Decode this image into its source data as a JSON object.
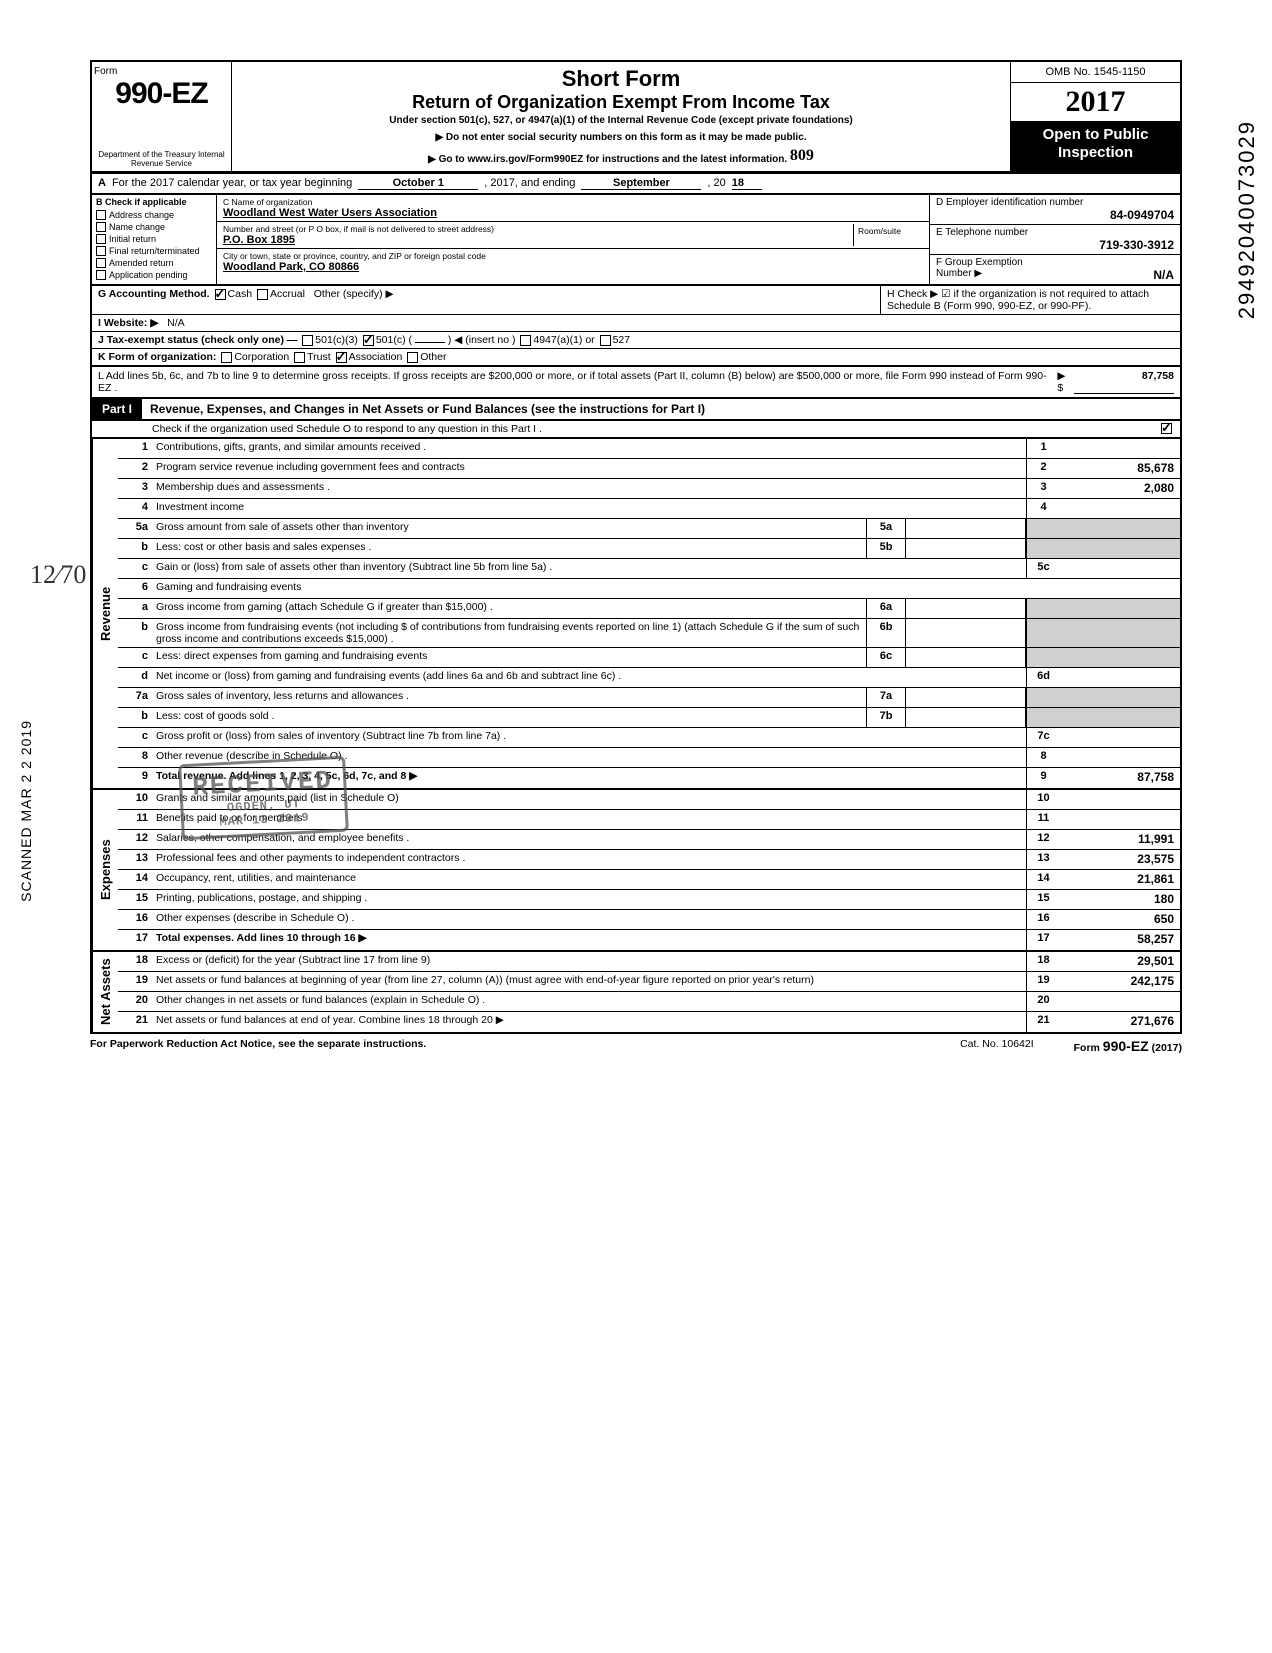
{
  "side": {
    "scan": "SCANNED MAR 2 2 2019",
    "dln": "29492040073029",
    "dln_tail": "9"
  },
  "header": {
    "form_label": "Form",
    "form_number": "990-EZ",
    "dept": "Department of the Treasury\nInternal Revenue Service",
    "title1": "Short Form",
    "title2": "Return of Organization Exempt From Income Tax",
    "subtitle": "Under section 501(c), 527, or 4947(a)(1) of the Internal Revenue Code (except private foundations)",
    "warn": "▶ Do not enter social security numbers on this form as it may be made public.",
    "goto": "▶ Go to www.irs.gov/Form990EZ for instructions and the latest information.",
    "hand809": "809",
    "omb": "OMB No. 1545-1150",
    "year_prefix": "20",
    "year_bold": "17",
    "open1": "Open to Public",
    "open2": "Inspection"
  },
  "rowA": {
    "label": "A",
    "text": "For the 2017 calendar year, or tax year beginning",
    "begin": "October 1",
    "mid": ", 2017, and ending",
    "end": "September",
    "yr_prefix": ", 20",
    "yr": "18"
  },
  "colB": {
    "header": "B  Check if applicable",
    "items": [
      "Address change",
      "Name change",
      "Initial return",
      "Final return/terminated",
      "Amended return",
      "Application pending"
    ]
  },
  "colC": {
    "c_label": "C  Name of organization",
    "c_val": "Woodland West Water Users Association",
    "addr_label": "Number and street (or P O  box, if mail is not delivered to street address)",
    "room_label": "Room/suite",
    "addr_val": "P.O. Box 1895",
    "city_label": "City or town, state or province, country, and ZIP or foreign postal code",
    "city_val": "Woodland Park, CO  80866"
  },
  "colDEF": {
    "d_label": "D  Employer identification number",
    "d_val": "84-0949704",
    "e_label": "E  Telephone number",
    "e_val": "719-330-3912",
    "f_label": "F  Group Exemption",
    "f_label2": "Number ▶",
    "f_val": "N/A"
  },
  "rowsGK": {
    "g_label": "G  Accounting Method.",
    "g_cash": "Cash",
    "g_accrual": "Accrual",
    "g_other": "Other (specify) ▶",
    "h_text": "H  Check ▶ ☑ if the organization is not required to attach Schedule B (Form 990, 990-EZ, or 990-PF).",
    "i_label": "I   Website: ▶",
    "i_val": "N/A",
    "j_label": "J  Tax-exempt status (check only one) —",
    "j_501c3": "501(c)(3)",
    "j_501c": "501(c) (",
    "j_insert": ") ◀ (insert no )",
    "j_4947": "4947(a)(1) or",
    "j_527": "527",
    "k_label": "K  Form of organization:",
    "k_corp": "Corporation",
    "k_trust": "Trust",
    "k_assoc": "Association",
    "k_other": "Other"
  },
  "lineL": {
    "text": "L  Add lines 5b, 6c, and 7b to line 9 to determine gross receipts. If gross receipts are $200,000 or more, or if total assets (Part II, column (B) below) are $500,000 or more, file Form 990 instead of Form 990-EZ .",
    "arrow": "▶  $",
    "amount": "87,758"
  },
  "part1": {
    "tag": "Part I",
    "title": "Revenue, Expenses, and Changes in Net Assets or Fund Balances (see the instructions for Part I)",
    "sched_o": "Check if the organization used Schedule O to respond to any question in this Part I ."
  },
  "sections": {
    "revenue": "Revenue",
    "expenses": "Expenses",
    "netassets": "Net Assets"
  },
  "lines": [
    {
      "n": "1",
      "d": "Contributions, gifts, grants, and similar amounts received .",
      "r": "1",
      "a": ""
    },
    {
      "n": "2",
      "d": "Program service revenue including government fees and contracts",
      "r": "2",
      "a": "85,678"
    },
    {
      "n": "3",
      "d": "Membership dues and assessments .",
      "r": "3",
      "a": "2,080"
    },
    {
      "n": "4",
      "d": "Investment income",
      "r": "4",
      "a": ""
    },
    {
      "n": "5a",
      "d": "Gross amount from sale of assets other than inventory",
      "mid": "5a"
    },
    {
      "n": "b",
      "d": "Less: cost or other basis and sales expenses .",
      "mid": "5b"
    },
    {
      "n": "c",
      "d": "Gain or (loss) from sale of assets other than inventory (Subtract line 5b from line 5a) .",
      "r": "5c",
      "a": ""
    },
    {
      "n": "6",
      "d": "Gaming and fundraising events"
    },
    {
      "n": "a",
      "d": "Gross income from gaming (attach Schedule G if greater than $15,000) .",
      "mid": "6a"
    },
    {
      "n": "b",
      "d": "Gross income from fundraising events (not including  $                of contributions from fundraising events reported on line 1) (attach Schedule G if the sum of such gross income and contributions exceeds $15,000) .",
      "mid": "6b"
    },
    {
      "n": "c",
      "d": "Less: direct expenses from gaming and fundraising events",
      "mid": "6c"
    },
    {
      "n": "d",
      "d": "Net income or (loss) from gaming and fundraising events (add lines 6a and 6b and subtract line 6c) .",
      "r": "6d",
      "a": ""
    },
    {
      "n": "7a",
      "d": "Gross sales of inventory, less returns and allowances .",
      "mid": "7a"
    },
    {
      "n": "b",
      "d": "Less: cost of goods sold .",
      "mid": "7b"
    },
    {
      "n": "c",
      "d": "Gross profit or (loss) from sales of inventory (Subtract line 7b from line 7a) .",
      "r": "7c",
      "a": ""
    },
    {
      "n": "8",
      "d": "Other revenue (describe in Schedule O) .",
      "r": "8",
      "a": ""
    },
    {
      "n": "9",
      "d": "Total revenue. Add lines 1, 2, 3, 4, 5c, 6d, 7c, and 8",
      "r": "9",
      "a": "87,758",
      "total": true,
      "arrow": true
    }
  ],
  "exp_lines": [
    {
      "n": "10",
      "d": "Grants and similar amounts paid (list in Schedule O)",
      "r": "10",
      "a": ""
    },
    {
      "n": "11",
      "d": "Benefits paid to or for members",
      "r": "11",
      "a": ""
    },
    {
      "n": "12",
      "d": "Salaries, other compensation, and employee benefits .",
      "r": "12",
      "a": "11,991"
    },
    {
      "n": "13",
      "d": "Professional fees and other payments to independent contractors .",
      "r": "13",
      "a": "23,575"
    },
    {
      "n": "14",
      "d": "Occupancy, rent, utilities, and maintenance",
      "r": "14",
      "a": "21,861"
    },
    {
      "n": "15",
      "d": "Printing, publications, postage, and shipping .",
      "r": "15",
      "a": "180"
    },
    {
      "n": "16",
      "d": "Other expenses (describe in Schedule O) .",
      "r": "16",
      "a": "650"
    },
    {
      "n": "17",
      "d": "Total expenses. Add lines 10 through 16",
      "r": "17",
      "a": "58,257",
      "total": true,
      "arrow": true
    }
  ],
  "na_lines": [
    {
      "n": "18",
      "d": "Excess or (deficit) for the year (Subtract line 17 from line 9)",
      "r": "18",
      "a": "29,501"
    },
    {
      "n": "19",
      "d": "Net assets or fund balances at beginning of year (from line 27, column (A)) (must agree with end-of-year figure reported on prior year's return)",
      "r": "19",
      "a": "242,175"
    },
    {
      "n": "20",
      "d": "Other changes in net assets or fund balances (explain in Schedule O) .",
      "r": "20",
      "a": ""
    },
    {
      "n": "21",
      "d": "Net assets or fund balances at end of year. Combine lines 18 through 20",
      "r": "21",
      "a": "271,676",
      "arrow": true
    }
  ],
  "stamp": {
    "l1": "RECEIVED",
    "l2": "OGDEN, UT",
    "l3": "MAR 13 2019"
  },
  "footer": {
    "left": "For Paperwork Reduction Act Notice, see the separate instructions.",
    "mid": "Cat. No. 10642I",
    "right_pre": "Form ",
    "right_form": "990-EZ",
    "right_yr": " (2017)"
  },
  "frac": "12⁄70"
}
